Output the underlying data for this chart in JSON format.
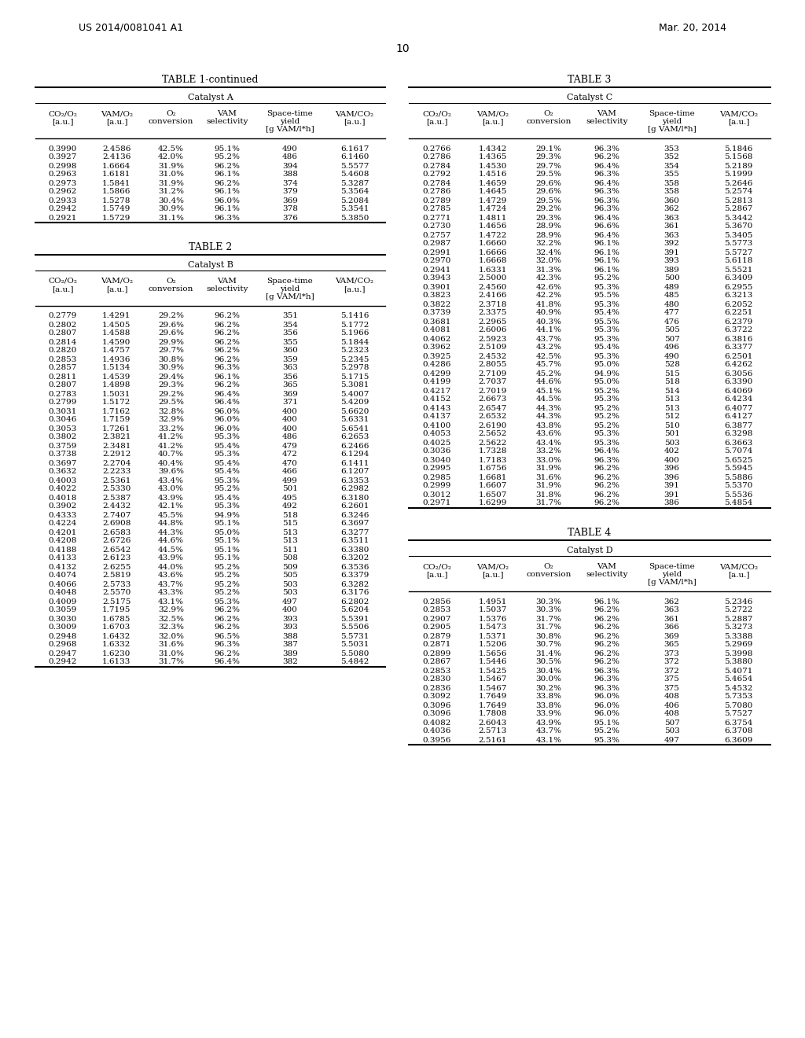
{
  "page_header_left": "US 2014/0081041 A1",
  "page_header_right": "Mar. 20, 2014",
  "page_number": "10",
  "table1_title": "TABLE 1-continued",
  "table1_subtitle": "Catalyst A",
  "table1_headers": [
    "CO₂/O₂\n[a.u.]",
    "VAM/O₂\n[a.u.]",
    "O₂\nconversion",
    "VAM\nselectivity",
    "Space-time\nyield\n[g VAM/l*h]",
    "VAM/CO₂\n[a.u.]"
  ],
  "table1_data": [
    [
      "0.3990",
      "2.4586",
      "42.5%",
      "95.1%",
      "490",
      "6.1617"
    ],
    [
      "0.3927",
      "2.4136",
      "42.0%",
      "95.2%",
      "486",
      "6.1460"
    ],
    [
      "0.2998",
      "1.6664",
      "31.9%",
      "96.2%",
      "394",
      "5.5577"
    ],
    [
      "0.2963",
      "1.6181",
      "31.0%",
      "96.1%",
      "388",
      "5.4608"
    ],
    [
      "0.2973",
      "1.5841",
      "31.9%",
      "96.2%",
      "374",
      "5.3287"
    ],
    [
      "0.2962",
      "1.5866",
      "31.2%",
      "96.1%",
      "379",
      "5.3564"
    ],
    [
      "0.2933",
      "1.5278",
      "30.4%",
      "96.0%",
      "369",
      "5.2084"
    ],
    [
      "0.2942",
      "1.5749",
      "30.9%",
      "96.1%",
      "378",
      "5.3541"
    ],
    [
      "0.2921",
      "1.5729",
      "31.1%",
      "96.3%",
      "376",
      "5.3850"
    ]
  ],
  "table2_title": "TABLE 2",
  "table2_subtitle": "Catalyst B",
  "table2_headers": [
    "CO₂/O₂\n[a.u.]",
    "VAM/O₂\n[a.u.]",
    "O₂\nconversion",
    "VAM\nselectivity",
    "Space-time\nyield\n[g VAM/l*h]",
    "VAM/CO₂\n[a.u.]"
  ],
  "table2_data": [
    [
      "0.2779",
      "1.4291",
      "29.2%",
      "96.2%",
      "351",
      "5.1416"
    ],
    [
      "0.2802",
      "1.4505",
      "29.6%",
      "96.2%",
      "354",
      "5.1772"
    ],
    [
      "0.2807",
      "1.4588",
      "29.6%",
      "96.2%",
      "356",
      "5.1966"
    ],
    [
      "0.2814",
      "1.4590",
      "29.9%",
      "96.2%",
      "355",
      "5.1844"
    ],
    [
      "0.2820",
      "1.4757",
      "29.7%",
      "96.2%",
      "360",
      "5.2323"
    ],
    [
      "0.2853",
      "1.4936",
      "30.8%",
      "96.2%",
      "359",
      "5.2345"
    ],
    [
      "0.2857",
      "1.5134",
      "30.9%",
      "96.3%",
      "363",
      "5.2978"
    ],
    [
      "0.2811",
      "1.4539",
      "29.4%",
      "96.1%",
      "356",
      "5.1715"
    ],
    [
      "0.2807",
      "1.4898",
      "29.3%",
      "96.2%",
      "365",
      "5.3081"
    ],
    [
      "0.2783",
      "1.5031",
      "29.2%",
      "96.4%",
      "369",
      "5.4007"
    ],
    [
      "0.2799",
      "1.5172",
      "29.5%",
      "96.4%",
      "371",
      "5.4209"
    ],
    [
      "0.3031",
      "1.7162",
      "32.8%",
      "96.0%",
      "400",
      "5.6620"
    ],
    [
      "0.3046",
      "1.7159",
      "32.9%",
      "96.0%",
      "400",
      "5.6331"
    ],
    [
      "0.3053",
      "1.7261",
      "33.2%",
      "96.0%",
      "400",
      "5.6541"
    ],
    [
      "0.3802",
      "2.3821",
      "41.2%",
      "95.3%",
      "486",
      "6.2653"
    ],
    [
      "0.3759",
      "2.3481",
      "41.2%",
      "95.4%",
      "479",
      "6.2466"
    ],
    [
      "0.3738",
      "2.2912",
      "40.7%",
      "95.3%",
      "472",
      "6.1294"
    ],
    [
      "0.3697",
      "2.2704",
      "40.4%",
      "95.4%",
      "470",
      "6.1411"
    ],
    [
      "0.3632",
      "2.2233",
      "39.6%",
      "95.4%",
      "466",
      "6.1207"
    ],
    [
      "0.4003",
      "2.5361",
      "43.4%",
      "95.3%",
      "499",
      "6.3353"
    ],
    [
      "0.4022",
      "2.5330",
      "43.0%",
      "95.2%",
      "501",
      "6.2982"
    ],
    [
      "0.4018",
      "2.5387",
      "43.9%",
      "95.4%",
      "495",
      "6.3180"
    ],
    [
      "0.3902",
      "2.4432",
      "42.1%",
      "95.3%",
      "492",
      "6.2601"
    ],
    [
      "0.4333",
      "2.7407",
      "45.5%",
      "94.9%",
      "518",
      "6.3246"
    ],
    [
      "0.4224",
      "2.6908",
      "44.8%",
      "95.1%",
      "515",
      "6.3697"
    ],
    [
      "0.4201",
      "2.6583",
      "44.3%",
      "95.0%",
      "513",
      "6.3277"
    ],
    [
      "0.4208",
      "2.6726",
      "44.6%",
      "95.1%",
      "513",
      "6.3511"
    ],
    [
      "0.4188",
      "2.6542",
      "44.5%",
      "95.1%",
      "511",
      "6.3380"
    ],
    [
      "0.4133",
      "2.6123",
      "43.9%",
      "95.1%",
      "508",
      "6.3202"
    ],
    [
      "0.4132",
      "2.6255",
      "44.0%",
      "95.2%",
      "509",
      "6.3536"
    ],
    [
      "0.4074",
      "2.5819",
      "43.6%",
      "95.2%",
      "505",
      "6.3379"
    ],
    [
      "0.4066",
      "2.5733",
      "43.7%",
      "95.2%",
      "503",
      "6.3282"
    ],
    [
      "0.4048",
      "2.5570",
      "43.3%",
      "95.2%",
      "503",
      "6.3176"
    ],
    [
      "0.4009",
      "2.5175",
      "43.1%",
      "95.3%",
      "497",
      "6.2802"
    ],
    [
      "0.3059",
      "1.7195",
      "32.9%",
      "96.2%",
      "400",
      "5.6204"
    ],
    [
      "0.3030",
      "1.6785",
      "32.5%",
      "96.2%",
      "393",
      "5.5391"
    ],
    [
      "0.3009",
      "1.6703",
      "32.3%",
      "96.2%",
      "393",
      "5.5506"
    ],
    [
      "0.2948",
      "1.6432",
      "32.0%",
      "96.5%",
      "388",
      "5.5731"
    ],
    [
      "0.2968",
      "1.6332",
      "31.6%",
      "96.3%",
      "387",
      "5.5031"
    ],
    [
      "0.2947",
      "1.6230",
      "31.0%",
      "96.2%",
      "389",
      "5.5080"
    ],
    [
      "0.2942",
      "1.6133",
      "31.7%",
      "96.4%",
      "382",
      "5.4842"
    ]
  ],
  "table3_title": "TABLE 3",
  "table3_subtitle": "Catalyst C",
  "table3_headers": [
    "CO₂/O₂\n[a.u.]",
    "VAM/O₂\n[a.u.]",
    "O₂\nconversion",
    "VAM\nselectivity",
    "Space-time\nyield\n[g VAM/l*h]",
    "VAM/CO₂\n[a.u.]"
  ],
  "table3_data": [
    [
      "0.2766",
      "1.4342",
      "29.1%",
      "96.3%",
      "353",
      "5.1846"
    ],
    [
      "0.2786",
      "1.4365",
      "29.3%",
      "96.2%",
      "352",
      "5.1568"
    ],
    [
      "0.2784",
      "1.4530",
      "29.7%",
      "96.4%",
      "354",
      "5.2189"
    ],
    [
      "0.2792",
      "1.4516",
      "29.5%",
      "96.3%",
      "355",
      "5.1999"
    ],
    [
      "0.2784",
      "1.4659",
      "29.6%",
      "96.4%",
      "358",
      "5.2646"
    ],
    [
      "0.2786",
      "1.4645",
      "29.6%",
      "96.3%",
      "358",
      "5.2574"
    ],
    [
      "0.2789",
      "1.4729",
      "29.5%",
      "96.3%",
      "360",
      "5.2813"
    ],
    [
      "0.2785",
      "1.4724",
      "29.2%",
      "96.3%",
      "362",
      "5.2867"
    ],
    [
      "0.2771",
      "1.4811",
      "29.3%",
      "96.4%",
      "363",
      "5.3442"
    ],
    [
      "0.2730",
      "1.4656",
      "28.9%",
      "96.6%",
      "361",
      "5.3670"
    ],
    [
      "0.2757",
      "1.4722",
      "28.9%",
      "96.4%",
      "363",
      "5.3405"
    ],
    [
      "0.2987",
      "1.6660",
      "32.2%",
      "96.1%",
      "392",
      "5.5773"
    ],
    [
      "0.2991",
      "1.6666",
      "32.4%",
      "96.1%",
      "391",
      "5.5727"
    ],
    [
      "0.2970",
      "1.6668",
      "32.0%",
      "96.1%",
      "393",
      "5.6118"
    ],
    [
      "0.2941",
      "1.6331",
      "31.3%",
      "96.1%",
      "389",
      "5.5521"
    ],
    [
      "0.3943",
      "2.5000",
      "42.3%",
      "95.2%",
      "500",
      "6.3409"
    ],
    [
      "0.3901",
      "2.4560",
      "42.6%",
      "95.3%",
      "489",
      "6.2955"
    ],
    [
      "0.3823",
      "2.4166",
      "42.2%",
      "95.5%",
      "485",
      "6.3213"
    ],
    [
      "0.3822",
      "2.3718",
      "41.8%",
      "95.3%",
      "480",
      "6.2052"
    ],
    [
      "0.3739",
      "2.3375",
      "40.9%",
      "95.4%",
      "477",
      "6.2251"
    ],
    [
      "0.3681",
      "2.2965",
      "40.3%",
      "95.5%",
      "476",
      "6.2379"
    ],
    [
      "0.4081",
      "2.6006",
      "44.1%",
      "95.3%",
      "505",
      "6.3722"
    ],
    [
      "0.4062",
      "2.5923",
      "43.7%",
      "95.3%",
      "507",
      "6.3816"
    ],
    [
      "0.3962",
      "2.5109",
      "43.2%",
      "95.4%",
      "496",
      "6.3377"
    ],
    [
      "0.3925",
      "2.4532",
      "42.5%",
      "95.3%",
      "490",
      "6.2501"
    ],
    [
      "0.4286",
      "2.8055",
      "45.7%",
      "95.0%",
      "528",
      "6.4262"
    ],
    [
      "0.4299",
      "2.7109",
      "45.2%",
      "94.9%",
      "515",
      "6.3056"
    ],
    [
      "0.4199",
      "2.7037",
      "44.6%",
      "95.0%",
      "518",
      "6.3390"
    ],
    [
      "0.4217",
      "2.7019",
      "45.1%",
      "95.2%",
      "514",
      "6.4069"
    ],
    [
      "0.4152",
      "2.6673",
      "44.5%",
      "95.3%",
      "513",
      "6.4234"
    ],
    [
      "0.4143",
      "2.6547",
      "44.3%",
      "95.2%",
      "513",
      "6.4077"
    ],
    [
      "0.4137",
      "2.6532",
      "44.3%",
      "95.2%",
      "512",
      "6.4127"
    ],
    [
      "0.4100",
      "2.6190",
      "43.8%",
      "95.2%",
      "510",
      "6.3877"
    ],
    [
      "0.4053",
      "2.5652",
      "43.6%",
      "95.3%",
      "501",
      "6.3298"
    ],
    [
      "0.4025",
      "2.5622",
      "43.4%",
      "95.3%",
      "503",
      "6.3663"
    ],
    [
      "0.3036",
      "1.7328",
      "33.2%",
      "96.4%",
      "402",
      "5.7074"
    ],
    [
      "0.3040",
      "1.7183",
      "33.0%",
      "96.3%",
      "400",
      "5.6525"
    ],
    [
      "0.2995",
      "1.6756",
      "31.9%",
      "96.2%",
      "396",
      "5.5945"
    ],
    [
      "0.2985",
      "1.6681",
      "31.6%",
      "96.2%",
      "396",
      "5.5886"
    ],
    [
      "0.2999",
      "1.6607",
      "31.9%",
      "96.2%",
      "391",
      "5.5370"
    ],
    [
      "0.3012",
      "1.6507",
      "31.8%",
      "96.2%",
      "391",
      "5.5536"
    ],
    [
      "0.2971",
      "1.6299",
      "31.7%",
      "96.2%",
      "386",
      "5.4854"
    ]
  ],
  "table4_title": "TABLE 4",
  "table4_subtitle": "Catalyst D",
  "table4_headers": [
    "CO₂/O₂\n[a.u.]",
    "VAM/O₂\n[a.u.]",
    "O₂\nconversion",
    "VAM\nselectivity",
    "Space-time\nyield\n[g VAM/l*h]",
    "VAM/CO₂\n[a.u.]"
  ],
  "table4_data": [
    [
      "0.2856",
      "1.4951",
      "30.3%",
      "96.1%",
      "362",
      "5.2346"
    ],
    [
      "0.2853",
      "1.5037",
      "30.3%",
      "96.2%",
      "363",
      "5.2722"
    ],
    [
      "0.2907",
      "1.5376",
      "31.7%",
      "96.2%",
      "361",
      "5.2887"
    ],
    [
      "0.2905",
      "1.5473",
      "31.7%",
      "96.2%",
      "366",
      "5.3273"
    ],
    [
      "0.2879",
      "1.5371",
      "30.8%",
      "96.2%",
      "369",
      "5.3388"
    ],
    [
      "0.2871",
      "1.5206",
      "30.7%",
      "96.2%",
      "365",
      "5.2969"
    ],
    [
      "0.2899",
      "1.5656",
      "31.4%",
      "96.2%",
      "373",
      "5.3998"
    ],
    [
      "0.2867",
      "1.5446",
      "30.5%",
      "96.2%",
      "372",
      "5.3880"
    ],
    [
      "0.2853",
      "1.5425",
      "30.4%",
      "96.3%",
      "372",
      "5.4071"
    ],
    [
      "0.2830",
      "1.5467",
      "30.0%",
      "96.3%",
      "375",
      "5.4654"
    ],
    [
      "0.2836",
      "1.5467",
      "30.2%",
      "96.3%",
      "375",
      "5.4532"
    ],
    [
      "0.3092",
      "1.7649",
      "33.8%",
      "96.0%",
      "408",
      "5.7353"
    ],
    [
      "0.3096",
      "1.7649",
      "33.8%",
      "96.0%",
      "406",
      "5.7080"
    ],
    [
      "0.3096",
      "1.7808",
      "33.9%",
      "96.0%",
      "408",
      "5.7527"
    ],
    [
      "0.4082",
      "2.6043",
      "43.9%",
      "95.1%",
      "507",
      "6.3754"
    ],
    [
      "0.4036",
      "2.5713",
      "43.7%",
      "95.2%",
      "503",
      "6.3708"
    ],
    [
      "0.3956",
      "2.5161",
      "43.1%",
      "95.3%",
      "497",
      "6.3609"
    ]
  ]
}
